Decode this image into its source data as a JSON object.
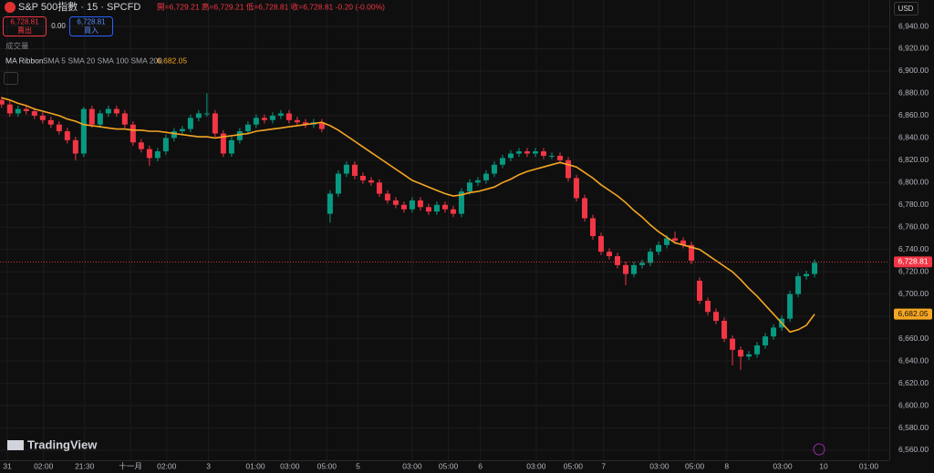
{
  "chart_data": {
    "type": "candlestick",
    "title": "S&P 500指數 · 15 · SPCFD",
    "ohlc_text": "開=6,729.21 高=6,729.21 低=6,728.81 收=6,728.81 -0.20 (-0.00%)",
    "sell_price": "6,728.81",
    "sell_label": "賣出",
    "spread": "0.00",
    "buy_price": "6,728.81",
    "buy_label": "買入",
    "volume_label": "成交量",
    "indicator": {
      "name": "MA Ribbon",
      "params": "SMA 5 SMA 20 SMA 100 SMA 200",
      "value": {
        "value": 6682.05,
        "label": "6,682.05"
      }
    },
    "currency": "USD",
    "brand": "TradingView",
    "last_price": {
      "value": 6728.81,
      "label": "6,728.81"
    },
    "up_color": "#089981",
    "down_color": "#f23645",
    "ma_color": "#f5a623",
    "grid": true,
    "xlim": [
      -0.2,
      108.1
    ],
    "ylim": [
      6551,
      6963.7
    ],
    "xticks": [
      {
        "value": 0.7,
        "label": "31"
      },
      {
        "value": 5.1,
        "label": "02:00"
      },
      {
        "value": 10.1,
        "label": "21:30"
      },
      {
        "value": 15.7,
        "label": "十一月"
      },
      {
        "value": 20.1,
        "label": "02:00"
      },
      {
        "value": 25.2,
        "label": "3"
      },
      {
        "value": 30.9,
        "label": "01:00"
      },
      {
        "value": 35.1,
        "label": "03:00"
      },
      {
        "value": 39.6,
        "label": "05:00"
      },
      {
        "value": 43.4,
        "label": "5"
      },
      {
        "value": 50,
        "label": "03:00"
      },
      {
        "value": 54.4,
        "label": "05:00"
      },
      {
        "value": 58.3,
        "label": "6"
      },
      {
        "value": 65.1,
        "label": "03:00"
      },
      {
        "value": 69.6,
        "label": "05:00"
      },
      {
        "value": 73.3,
        "label": "7"
      },
      {
        "value": 80.1,
        "label": "03:00"
      },
      {
        "value": 84.4,
        "label": "05:00"
      },
      {
        "value": 88.3,
        "label": "8"
      },
      {
        "value": 95.1,
        "label": "03:00"
      },
      {
        "value": 100.1,
        "label": "10"
      },
      {
        "value": 105.6,
        "label": "01:00"
      }
    ],
    "yticks": [
      {
        "value": 6560,
        "label": "6,560.00"
      },
      {
        "value": 6580,
        "label": "6,580.00"
      },
      {
        "value": 6600,
        "label": "6,600.00"
      },
      {
        "value": 6620,
        "label": "6,620.00"
      },
      {
        "value": 6640,
        "label": "6,640.00"
      },
      {
        "value": 6660,
        "label": "6,660.00"
      },
      {
        "value": 6680,
        "label": "6,680.00"
      },
      {
        "value": 6700,
        "label": "6,700.00"
      },
      {
        "value": 6720,
        "label": "6,720.00"
      },
      {
        "value": 6740,
        "label": "6,740.00"
      },
      {
        "value": 6760,
        "label": "6,760.00"
      },
      {
        "value": 6780,
        "label": "6,780.00"
      },
      {
        "value": 6800,
        "label": "6,800.00"
      },
      {
        "value": 6820,
        "label": "6,820.00"
      },
      {
        "value": 6840,
        "label": "6,840.00"
      },
      {
        "value": 6860,
        "label": "6,860.00"
      },
      {
        "value": 6880,
        "label": "6,880.00"
      },
      {
        "value": 6900,
        "label": "6,900.00"
      },
      {
        "value": 6920,
        "label": "6,920.00"
      },
      {
        "value": 6940,
        "label": "6,940.00"
      }
    ],
    "open": [
      6874,
      6870,
      6862,
      6866,
      6864,
      6860,
      6856,
      6852,
      6846,
      6838,
      6826,
      6866,
      6852,
      6862,
      6866,
      6862,
      6852,
      6836,
      6830,
      6822,
      6828,
      6840,
      6846,
      6848,
      6858,
      6862,
      6862,
      6844,
      6826,
      6838,
      6846,
      6852,
      6858,
      6856,
      6860,
      6862,
      6856,
      6854,
      6852,
      6854,
      6772,
      6790,
      6808,
      6816,
      6806,
      6802,
      6800,
      6790,
      6784,
      6780,
      6776,
      6784,
      6778,
      6774,
      6780,
      6776,
      6772,
      6792,
      6800,
      6802,
      6808,
      6816,
      6822,
      6826,
      6828,
      6826,
      6828,
      6824,
      6824,
      6820,
      6804,
      6786,
      6768,
      6752,
      6738,
      6734,
      6726,
      6718,
      6726,
      6728,
      6738,
      6744,
      6750,
      6748,
      6744,
      6712,
      6694,
      6684,
      6676,
      6660,
      6650,
      6644,
      6646,
      6654,
      6662,
      6670,
      6678,
      6700,
      6716,
      6718
    ],
    "high": [
      6877,
      6873,
      6869,
      6869,
      6867,
      6863,
      6859,
      6855,
      6849,
      6841,
      6868,
      6869,
      6865,
      6869,
      6869,
      6865,
      6855,
      6839,
      6833,
      6831,
      6843,
      6849,
      6851,
      6861,
      6865,
      6880,
      6865,
      6847,
      6841,
      6849,
      6855,
      6861,
      6861,
      6863,
      6865,
      6865,
      6859,
      6857,
      6857,
      6857,
      6793,
      6811,
      6819,
      6819,
      6809,
      6805,
      6803,
      6793,
      6787,
      6783,
      6787,
      6787,
      6781,
      6783,
      6783,
      6779,
      6795,
      6803,
      6805,
      6811,
      6819,
      6825,
      6829,
      6831,
      6831,
      6831,
      6831,
      6827,
      6827,
      6823,
      6807,
      6789,
      6771,
      6755,
      6741,
      6737,
      6729,
      6729,
      6731,
      6741,
      6747,
      6753,
      6756,
      6751,
      6747,
      6715,
      6697,
      6687,
      6679,
      6663,
      6653,
      6649,
      6657,
      6665,
      6673,
      6681,
      6703,
      6719,
      6721,
      6731
    ],
    "low": [
      6867,
      6859,
      6859,
      6861,
      6857,
      6853,
      6849,
      6843,
      6835,
      6820,
      6823,
      6849,
      6849,
      6859,
      6859,
      6849,
      6833,
      6827,
      6815,
      6819,
      6825,
      6837,
      6843,
      6845,
      6855,
      6859,
      6841,
      6823,
      6823,
      6835,
      6843,
      6849,
      6853,
      6853,
      6857,
      6853,
      6851,
      6849,
      6849,
      6845,
      6764,
      6787,
      6805,
      6803,
      6799,
      6797,
      6787,
      6781,
      6777,
      6773,
      6773,
      6775,
      6771,
      6771,
      6773,
      6769,
      6769,
      6789,
      6797,
      6799,
      6805,
      6813,
      6819,
      6823,
      6823,
      6823,
      6821,
      6821,
      6817,
      6801,
      6783,
      6765,
      6749,
      6735,
      6731,
      6723,
      6708,
      6715,
      6723,
      6725,
      6735,
      6741,
      6745,
      6741,
      6727,
      6691,
      6681,
      6673,
      6657,
      6636,
      6632,
      6641,
      6643,
      6651,
      6659,
      6667,
      6675,
      6697,
      6713,
      6715
    ],
    "close": [
      6870,
      6862,
      6866,
      6864,
      6860,
      6856,
      6852,
      6846,
      6838,
      6826,
      6866,
      6852,
      6862,
      6866,
      6862,
      6852,
      6836,
      6830,
      6822,
      6828,
      6840,
      6846,
      6848,
      6858,
      6862,
      6862,
      6844,
      6826,
      6838,
      6846,
      6852,
      6858,
      6856,
      6860,
      6862,
      6856,
      6854,
      6852,
      6854,
      6848,
      6790,
      6808,
      6816,
      6806,
      6802,
      6800,
      6790,
      6784,
      6780,
      6776,
      6784,
      6778,
      6774,
      6780,
      6776,
      6772,
      6792,
      6800,
      6802,
      6808,
      6816,
      6822,
      6826,
      6828,
      6826,
      6828,
      6824,
      6824,
      6820,
      6804,
      6786,
      6768,
      6752,
      6738,
      6734,
      6726,
      6718,
      6726,
      6728,
      6738,
      6744,
      6750,
      6748,
      6744,
      6730,
      6694,
      6684,
      6676,
      6660,
      6650,
      6644,
      6646,
      6654,
      6662,
      6670,
      6678,
      6700,
      6716,
      6718,
      6728
    ],
    "ma": [
      6876,
      6874,
      6871,
      6869,
      6866,
      6864,
      6862,
      6860,
      6857,
      6855,
      6852,
      6851,
      6850,
      6849,
      6848,
      6848,
      6847,
      6847,
      6846,
      6846,
      6845,
      6844,
      6843,
      6842,
      6841,
      6841,
      6840,
      6841,
      6842,
      6843,
      6844,
      6846,
      6847,
      6848,
      6849,
      6850,
      6851,
      6852,
      6853,
      6854,
      6851,
      6847,
      6842,
      6837,
      6832,
      6827,
      6822,
      6817,
      6812,
      6807,
      6802,
      6799,
      6796,
      6793,
      6790,
      6788,
      6789,
      6791,
      6792,
      6794,
      6796,
      6800,
      6803,
      6807,
      6810,
      6812,
      6814,
      6816,
      6818,
      6816,
      6814,
      6809,
      6804,
      6798,
      6793,
      6788,
      6782,
      6775,
      6769,
      6762,
      6756,
      6751,
      6746,
      6744,
      6742,
      6740,
      6735,
      6730,
      6725,
      6720,
      6713,
      6705,
      6698,
      6690,
      6682,
      6674,
      6666,
      6668,
      6672,
      6682
    ]
  }
}
